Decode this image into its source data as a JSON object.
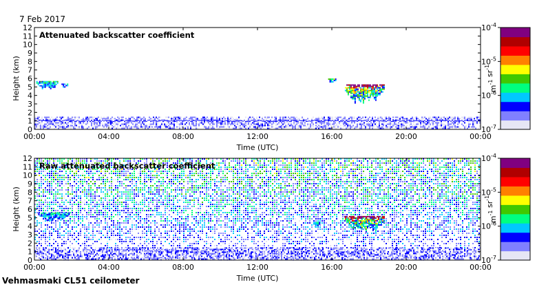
{
  "date": "7 Feb 2017",
  "footer": "Vehmasmaki CL51 ceilometer",
  "colors": {
    "colormap": [
      "#e6e6f5",
      "#8080ff",
      "#0000ff",
      "#00c8ff",
      "#00ff80",
      "#40c800",
      "#ffff00",
      "#ff8000",
      "#ff0000",
      "#b00000",
      "#800080"
    ],
    "frame": "#000000",
    "background": "#ffffff"
  },
  "chart_data": [
    {
      "type": "heatmap",
      "title": "Attenuated backscatter coefficient",
      "xlabel": "Time (UTC)",
      "ylabel": "Height (km)",
      "xlim": [
        "00:00",
        "24:00"
      ],
      "ylim": [
        0,
        12
      ],
      "x_ticks": [
        "00:00",
        "04:00",
        "08:00",
        "12:00",
        "16:00",
        "20:00",
        "00:00"
      ],
      "y_ticks": [
        "0",
        "1",
        "2",
        "3",
        "4",
        "5",
        "6",
        "7",
        "8",
        "9",
        "10",
        "11",
        "12"
      ],
      "colorbar": {
        "label": "m-1 sr-1",
        "scale": "log",
        "range": [
          1e-07,
          0.0001
        ],
        "tick_labels": [
          "10-7",
          "10-6",
          "10-5",
          "10-4"
        ]
      },
      "features": [
        {
          "kind": "cloud",
          "t_start_h": 0.1,
          "t_end_h": 1.25,
          "base_km": 4.8,
          "top_km": 5.7,
          "peak": 5e-06
        },
        {
          "kind": "cloud",
          "t_start_h": 1.45,
          "t_end_h": 1.8,
          "base_km": 4.9,
          "top_km": 5.4,
          "peak": 4e-06
        },
        {
          "kind": "cloud",
          "t_start_h": 15.8,
          "t_end_h": 16.2,
          "base_km": 5.5,
          "top_km": 6.0,
          "peak": 6e-06
        },
        {
          "kind": "cloud",
          "t_start_h": 16.7,
          "t_end_h": 18.8,
          "base_km": 3.1,
          "top_km": 5.3,
          "peak": 8e-05
        },
        {
          "kind": "boundary_layer",
          "t_start_h": 0,
          "t_end_h": 24,
          "base_km": 0,
          "top_km": 1.5,
          "peak": 3e-07
        }
      ]
    },
    {
      "type": "heatmap",
      "title": "Raw attenuated backscatter coefficient",
      "xlabel": "Time (UTC)",
      "ylabel": "Height (km)",
      "xlim": [
        "00:00",
        "24:00"
      ],
      "ylim": [
        0,
        12
      ],
      "x_ticks": [
        "00:00",
        "04:00",
        "08:00",
        "12:00",
        "16:00",
        "20:00",
        "00:00"
      ],
      "y_ticks": [
        "0",
        "1",
        "2",
        "3",
        "4",
        "5",
        "6",
        "7",
        "8",
        "9",
        "10",
        "11",
        "12"
      ],
      "colorbar": {
        "label": "m-1 sr-1",
        "scale": "log",
        "range": [
          1e-07,
          0.0001
        ],
        "tick_labels": [
          "10-7",
          "10-6",
          "10-5",
          "10-4"
        ]
      },
      "features": [
        {
          "kind": "noise",
          "t_start_h": 0,
          "t_end_h": 24,
          "base_km": 0,
          "top_km": 12,
          "peak": 1e-06
        },
        {
          "kind": "cloud",
          "t_start_h": 0.2,
          "t_end_h": 1.9,
          "base_km": 4.7,
          "top_km": 5.6,
          "peak": 3e-06
        },
        {
          "kind": "cloud",
          "t_start_h": 15.0,
          "t_end_h": 15.3,
          "base_km": 3.8,
          "top_km": 4.5,
          "peak": 3e-06
        },
        {
          "kind": "cloud",
          "t_start_h": 16.7,
          "t_end_h": 18.8,
          "base_km": 3.3,
          "top_km": 5.2,
          "peak": 8e-05
        }
      ]
    }
  ]
}
